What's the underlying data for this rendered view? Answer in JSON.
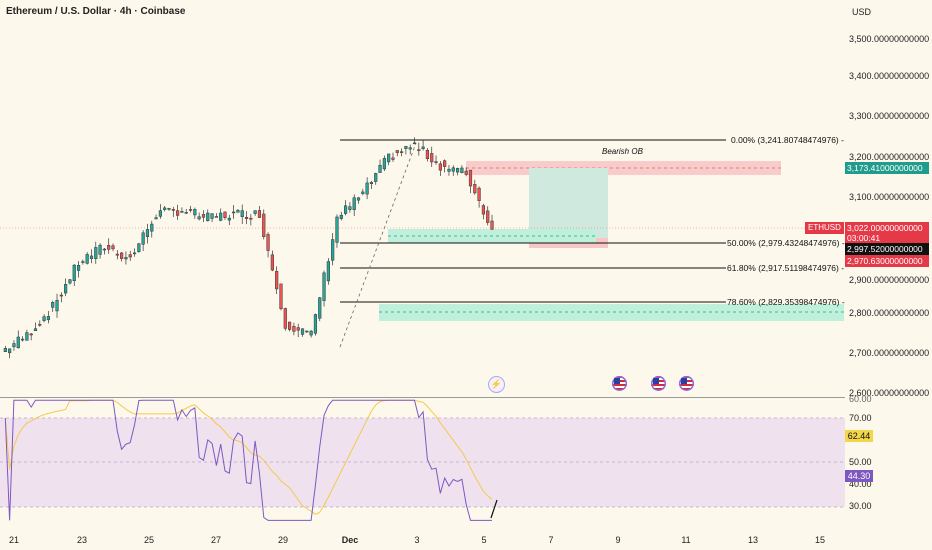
{
  "header": {
    "title": "Ethereum / U.S. Dollar · 4h · Coinbase",
    "currency": "USD"
  },
  "price_axis": {
    "ticks": [
      "3,500.00000000000",
      "3,400.00000000000",
      "3,300.00000000000",
      "3,200.00000000000",
      "3,100.00000000000",
      "2,900.00000000000",
      "2,800.00000000000",
      "2,700.00000000000",
      "2,600.00000000000"
    ],
    "tick_values": [
      3500,
      3400,
      3300,
      3200,
      3100,
      2900,
      2800,
      2700,
      2600
    ]
  },
  "badges": {
    "symbol": "ETHUSD",
    "current_price": "3,022.00000000000",
    "countdown": "03:00:41",
    "level_black": "2,997.52000000000",
    "level_red": "2,970.63000000000",
    "level_teal": "3,173.41000000000"
  },
  "fib_levels": [
    {
      "label": "0.00% (3,241.80748474976)",
      "price": 3241.8
    },
    {
      "label": "50.00% (2,979.43248474976)",
      "price": 2979.4
    },
    {
      "label": "61.80% (2,917.51198474976)",
      "price": 2917.5
    },
    {
      "label": "78.60% (2,829.35398474976)",
      "price": 2829.4
    }
  ],
  "annotations": {
    "bearish_ob": "Bearish OB"
  },
  "rsi": {
    "ticks": [
      "70.00",
      "50.00",
      "40.00",
      "30.00"
    ],
    "tick_values": [
      70,
      50,
      40,
      30
    ],
    "top_clipped_tick": "60.00",
    "value_ma": "62.44",
    "value_rsi": "44.30"
  },
  "time_axis": {
    "labels": [
      "21",
      "23",
      "25",
      "27",
      "29",
      "Dec",
      "3",
      "5",
      "7",
      "9",
      "11",
      "13",
      "15"
    ]
  },
  "colors": {
    "bull": "#26a69a",
    "bear": "#ef5350",
    "rsi_line": "#7e57c2",
    "rsi_ma": "#f2c94c",
    "bearish_ob": "#f7c6c6",
    "demand_zone": "#bff0dc",
    "long_zone": "#cfe9df",
    "background": "#fdf8ec"
  },
  "chart_data": {
    "type": "candlestick",
    "timeframe": "4h",
    "approx_close_path": [
      {
        "x": "Nov 20",
        "close": 2720
      },
      {
        "x": "Nov 21",
        "close": 2760
      },
      {
        "x": "Nov 22",
        "close": 2830
      },
      {
        "x": "Nov 23",
        "close": 2940
      },
      {
        "x": "Nov 24",
        "close": 2980
      },
      {
        "x": "Nov 25",
        "close": 2950
      },
      {
        "x": "Nov 26",
        "close": 3060
      },
      {
        "x": "Nov 27",
        "close": 3070
      },
      {
        "x": "Nov 28",
        "close": 3050
      },
      {
        "x": "Nov 29",
        "close": 3060
      },
      {
        "x": "Nov 30",
        "close": 3060
      },
      {
        "x": "Dec 1",
        "close": 2790
      },
      {
        "x": "Dec 1.5",
        "close": 2760
      },
      {
        "x": "Dec 2",
        "close": 3050
      },
      {
        "x": "Dec 2.5",
        "close": 3110
      },
      {
        "x": "Dec 3",
        "close": 3200
      },
      {
        "x": "Dec 3.5",
        "close": 3230
      },
      {
        "x": "Dec 4",
        "close": 3180
      },
      {
        "x": "Dec 4.5",
        "close": 3160
      },
      {
        "x": "Dec 5",
        "close": 3022
      }
    ],
    "rsi_range": [
      25,
      80
    ]
  }
}
